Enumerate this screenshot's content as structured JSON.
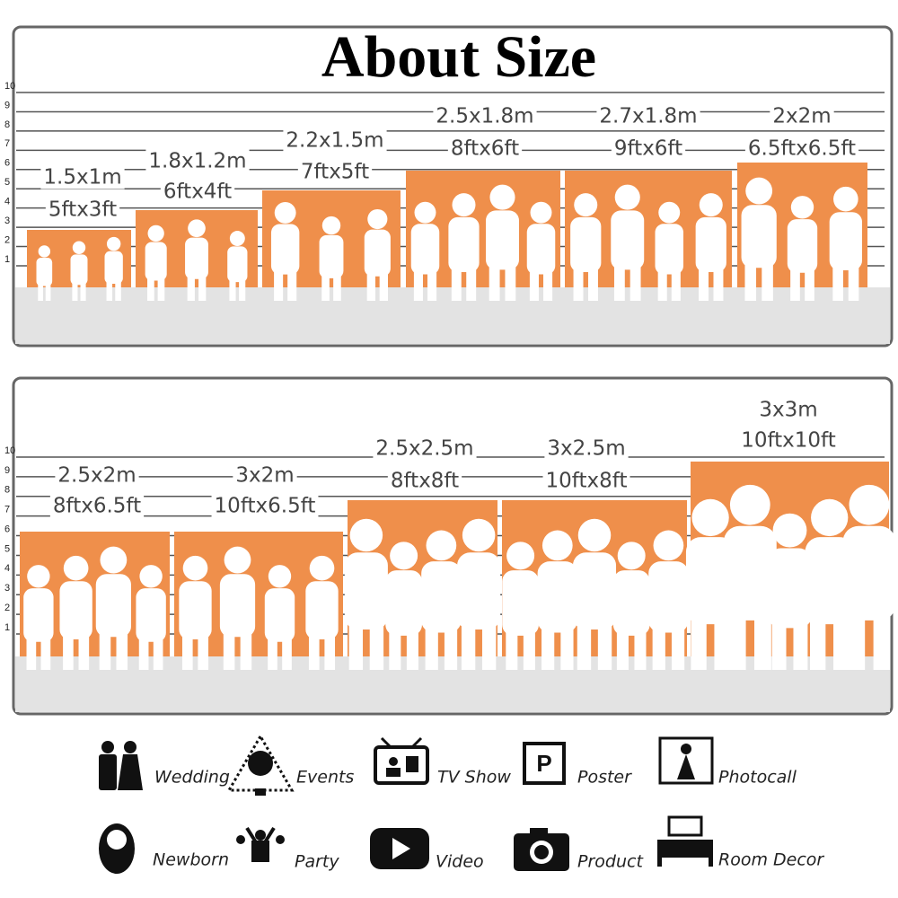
{
  "title": "About Size",
  "scale": [
    "1",
    "2",
    "3",
    "4",
    "5",
    "6",
    "7",
    "8",
    "9",
    "10"
  ],
  "panels": [
    {
      "sizes": [
        {
          "metric": "1.5x1m",
          "imperial": "5ftx3ft"
        },
        {
          "metric": "1.8x1.2m",
          "imperial": "6ftx4ft"
        },
        {
          "metric": "2.2x1.5m",
          "imperial": "7ftx5ft"
        },
        {
          "metric": "2.5x1.8m",
          "imperial": "8ftx6ft"
        },
        {
          "metric": "2.7x1.8m",
          "imperial": "9ftx6ft"
        },
        {
          "metric": "2x2m",
          "imperial": "6.5ftx6.5ft"
        }
      ]
    },
    {
      "sizes": [
        {
          "metric": "2.5x2m",
          "imperial": "8ftx6.5ft"
        },
        {
          "metric": "3x2m",
          "imperial": "10ftx6.5ft"
        },
        {
          "metric": "2.5x2.5m",
          "imperial": "8ftx8ft"
        },
        {
          "metric": "3x2.5m",
          "imperial": "10ftx8ft"
        },
        {
          "metric": "3x3m",
          "imperial": "10ftx10ft"
        }
      ]
    }
  ],
  "uses": [
    "Wedding",
    "Events",
    "TV Show",
    "Poster",
    "Photocall",
    "Newborn",
    "Party",
    "Video",
    "Product",
    "Room Decor"
  ]
}
